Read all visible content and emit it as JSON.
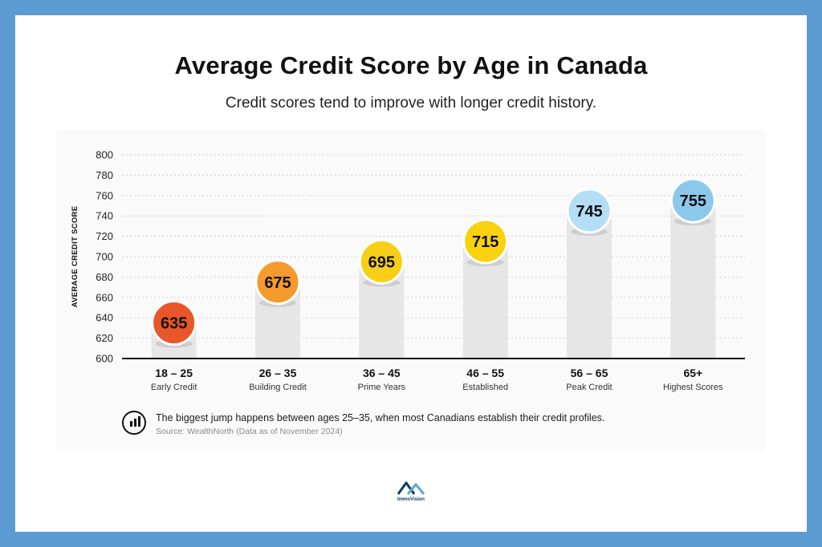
{
  "header": {
    "title": "Average Credit Score by Age in Canada",
    "subtitle": "Credit scores tend to improve with longer credit history."
  },
  "chart_data": {
    "type": "bar",
    "ylabel": "AVERAGE CREDIT SCORE",
    "ylim": [
      600,
      800
    ],
    "yticks": [
      600,
      620,
      640,
      660,
      680,
      700,
      720,
      740,
      760,
      780,
      800
    ],
    "grid": true,
    "categories": [
      "18 – 25",
      "26 – 35",
      "36 – 45",
      "46 – 55",
      "56 – 65",
      "65+"
    ],
    "sublabels": [
      "Early Credit",
      "Building Credit",
      "Prime Years",
      "Established",
      "Peak Credit",
      "Highest Scores"
    ],
    "values": [
      635,
      675,
      695,
      715,
      745,
      755
    ],
    "colors": [
      "#e8562a",
      "#f59a2c",
      "#f7cf16",
      "#f9d20f",
      "#b4def6",
      "#8cc8ec"
    ],
    "bar_color": "#e6e6e6"
  },
  "note": {
    "icon": "bar-chart-icon",
    "text": "The biggest jump happens between ages 25–35, when most Canadians establish their credit profiles.",
    "source": "Source: WealthNorth (Data as of November 2024)"
  },
  "brand": {
    "logo_text": "ImmoVision",
    "logo_colors": [
      "#5ba7dc",
      "#0e3a63"
    ]
  }
}
